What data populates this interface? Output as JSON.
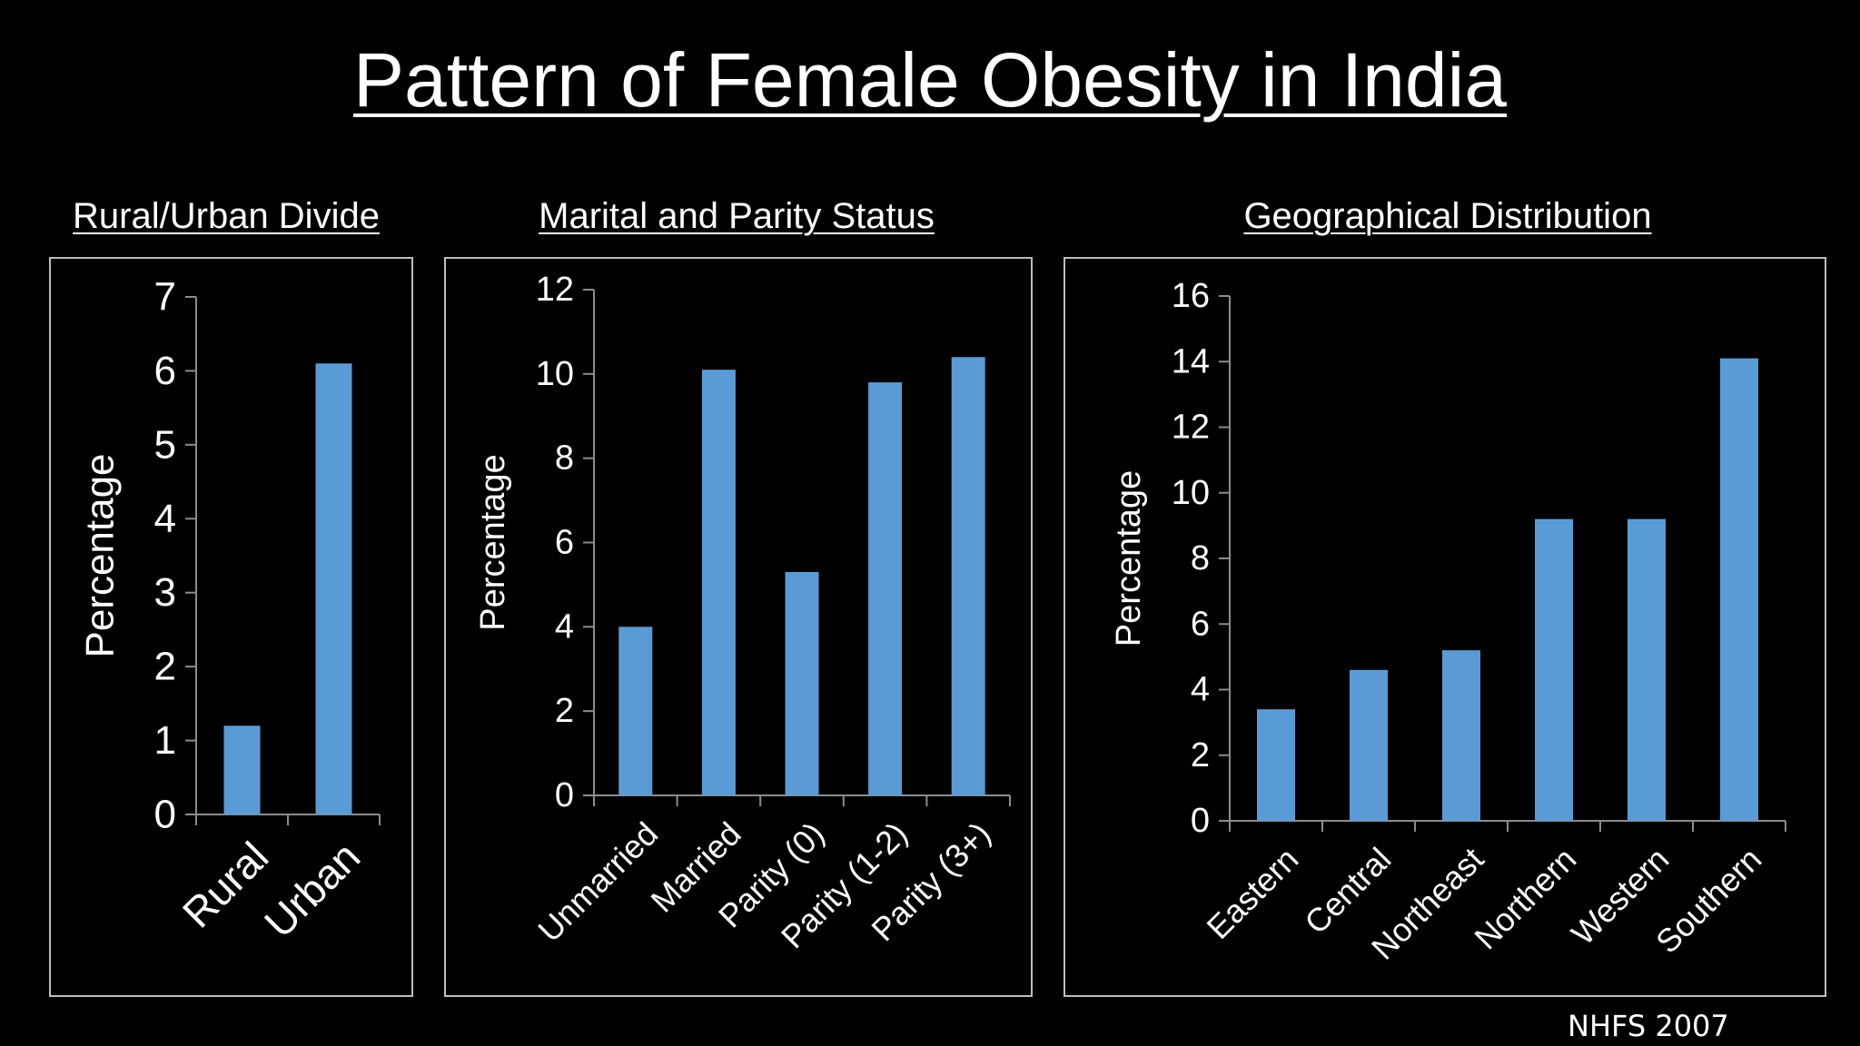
{
  "title": "Pattern of Female Obesity in India",
  "source": "NHFS 2007",
  "colors": {
    "background": "#000000",
    "bar": "#5b9bd5",
    "text": "#ffffff",
    "axis": "#8c8c8c",
    "panel_border": "#bdbdbd"
  },
  "chart_data": [
    {
      "type": "bar",
      "title": "Rural/Urban Divide",
      "ylabel": "Percentage",
      "xlabel": "",
      "categories": [
        "Rural",
        "Urban"
      ],
      "values": [
        1.2,
        6.1
      ],
      "ylim": [
        0,
        7
      ],
      "yticks": [
        0,
        1,
        2,
        3,
        4,
        5,
        6,
        7
      ],
      "grid": false,
      "legend": "none"
    },
    {
      "type": "bar",
      "title": "Marital and Parity  Status",
      "ylabel": "Percentage",
      "xlabel": "",
      "categories": [
        "Unmarried",
        "Married",
        "Parity (0)",
        "Parity (1-2)",
        "Parity (3+)"
      ],
      "values": [
        4.0,
        10.1,
        5.3,
        9.8,
        10.4
      ],
      "ylim": [
        0,
        12
      ],
      "yticks": [
        0,
        2,
        4,
        6,
        8,
        10,
        12
      ],
      "grid": false,
      "legend": "none"
    },
    {
      "type": "bar",
      "title": "Geographical Distribution",
      "ylabel": "Percentage",
      "xlabel": "",
      "categories": [
        "Eastern",
        "Central",
        "Northeast",
        "Northern",
        "Western",
        "Southern"
      ],
      "values": [
        3.4,
        4.6,
        5.2,
        9.2,
        9.2,
        14.1
      ],
      "ylim": [
        0,
        16
      ],
      "yticks": [
        0,
        2,
        4,
        6,
        8,
        10,
        12,
        14,
        16
      ],
      "grid": false,
      "legend": "none"
    }
  ]
}
